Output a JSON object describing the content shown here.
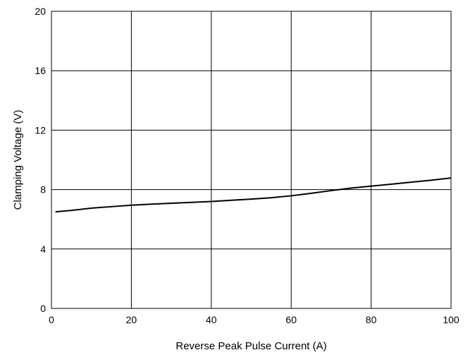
{
  "chart_data": {
    "type": "line",
    "xlabel": "Reverse Peak Pulse Current (A)",
    "ylabel": "Clamping Voltage (V)",
    "xlim": [
      0,
      100
    ],
    "ylim": [
      0,
      20
    ],
    "x_ticks": [
      "0",
      "20",
      "40",
      "60",
      "80",
      "100"
    ],
    "y_ticks": [
      "0",
      "4",
      "8",
      "12",
      "16",
      "20"
    ],
    "grid": true,
    "legend": "none",
    "series": [
      {
        "color": "#000000",
        "x": [
          1,
          5,
          10,
          15,
          20,
          25,
          30,
          35,
          40,
          45,
          50,
          55,
          60,
          65,
          70,
          75,
          80,
          85,
          90,
          95,
          100
        ],
        "y": [
          6.5,
          6.6,
          6.75,
          6.85,
          6.95,
          7.02,
          7.08,
          7.14,
          7.2,
          7.28,
          7.36,
          7.45,
          7.58,
          7.75,
          7.93,
          8.1,
          8.23,
          8.36,
          8.5,
          8.63,
          8.78
        ]
      }
    ]
  }
}
